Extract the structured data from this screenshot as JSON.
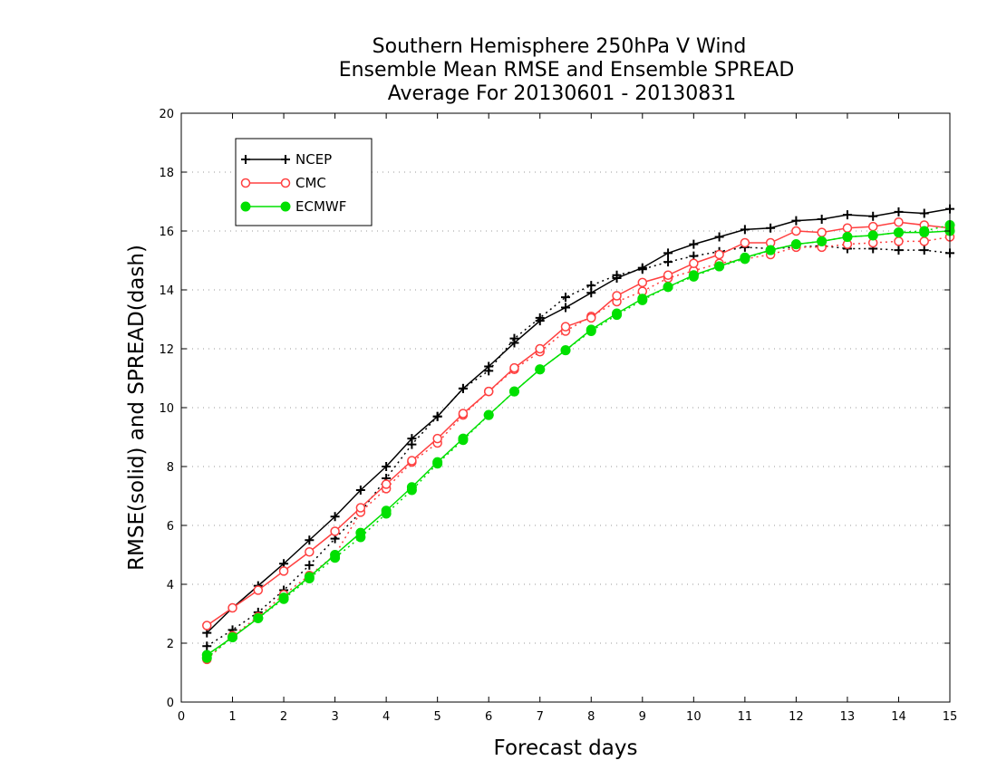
{
  "chart_data": {
    "type": "line",
    "title_lines": [
      "Southern Hemisphere 250hPa V Wind",
      "Ensemble Mean RMSE and Ensemble SPREAD",
      "Average For 20130601 - 20130831"
    ],
    "xlabel": "Forecast days",
    "ylabel": "RMSE(solid) and SPREAD(dash)",
    "xlim": [
      0,
      15
    ],
    "ylim": [
      0,
      20
    ],
    "xticks": [
      0,
      1,
      2,
      3,
      4,
      5,
      6,
      7,
      8,
      9,
      10,
      11,
      12,
      13,
      14,
      15
    ],
    "yticks": [
      0,
      2,
      4,
      6,
      8,
      10,
      12,
      14,
      16,
      18,
      20
    ],
    "grid": "horizontal dotted",
    "legend_position": "upper-left",
    "x": [
      0.5,
      1,
      1.5,
      2,
      2.5,
      3,
      3.5,
      4,
      4.5,
      5,
      5.5,
      6,
      6.5,
      7,
      7.5,
      8,
      8.5,
      9,
      9.5,
      10,
      10.5,
      11,
      11.5,
      12,
      12.5,
      13,
      13.5,
      14,
      14.5,
      15
    ],
    "series": [
      {
        "name": "NCEP",
        "color": "#000000",
        "marker": "plus",
        "rmse": [
          2.35,
          3.2,
          3.95,
          4.7,
          5.5,
          6.3,
          7.2,
          8.0,
          8.95,
          9.7,
          10.65,
          11.4,
          12.2,
          12.95,
          13.4,
          13.9,
          14.4,
          14.75,
          15.25,
          15.55,
          15.8,
          16.05,
          16.1,
          16.35,
          16.4,
          16.55,
          16.5,
          16.65,
          16.6,
          16.75
        ],
        "spread": [
          1.9,
          2.45,
          3.05,
          3.8,
          4.65,
          5.55,
          6.45,
          7.6,
          8.75,
          9.7,
          10.65,
          11.25,
          12.35,
          13.05,
          13.75,
          14.15,
          14.5,
          14.7,
          14.95,
          15.15,
          15.3,
          15.45,
          15.4,
          15.45,
          15.5,
          15.4,
          15.4,
          15.35,
          15.35,
          15.25
        ]
      },
      {
        "name": "CMC",
        "color": "#ff4040",
        "marker": "open-circle",
        "rmse": [
          2.6,
          3.2,
          3.8,
          4.45,
          5.1,
          5.8,
          6.6,
          7.4,
          8.2,
          8.95,
          9.8,
          10.55,
          11.35,
          12.0,
          12.75,
          13.05,
          13.8,
          14.25,
          14.5,
          14.9,
          15.2,
          15.6,
          15.6,
          16.0,
          15.95,
          16.1,
          16.15,
          16.3,
          16.2,
          16.1
        ],
        "spread": [
          1.45,
          2.25,
          2.9,
          3.65,
          4.3,
          5.0,
          6.45,
          7.25,
          8.15,
          8.8,
          9.75,
          10.55,
          11.3,
          11.9,
          12.6,
          13.1,
          13.6,
          13.95,
          14.4,
          14.65,
          14.9,
          15.05,
          15.2,
          15.45,
          15.45,
          15.55,
          15.6,
          15.65,
          15.65,
          15.8
        ]
      },
      {
        "name": "ECMWF",
        "color": "#00e000",
        "marker": "filled-circle",
        "rmse": [
          1.6,
          2.2,
          2.85,
          3.55,
          4.25,
          5.0,
          5.75,
          6.5,
          7.3,
          8.15,
          8.95,
          9.75,
          10.55,
          11.3,
          11.95,
          12.65,
          13.2,
          13.7,
          14.1,
          14.5,
          14.8,
          15.1,
          15.35,
          15.55,
          15.65,
          15.8,
          15.85,
          15.95,
          15.95,
          16.0
        ],
        "spread": [
          1.5,
          2.2,
          2.85,
          3.5,
          4.2,
          4.9,
          5.6,
          6.4,
          7.2,
          8.1,
          8.9,
          9.75,
          10.55,
          11.3,
          11.95,
          12.6,
          13.15,
          13.65,
          14.1,
          14.45,
          14.8,
          15.05,
          15.35,
          15.55,
          15.65,
          15.8,
          15.85,
          15.95,
          16.0,
          16.2
        ]
      }
    ]
  }
}
